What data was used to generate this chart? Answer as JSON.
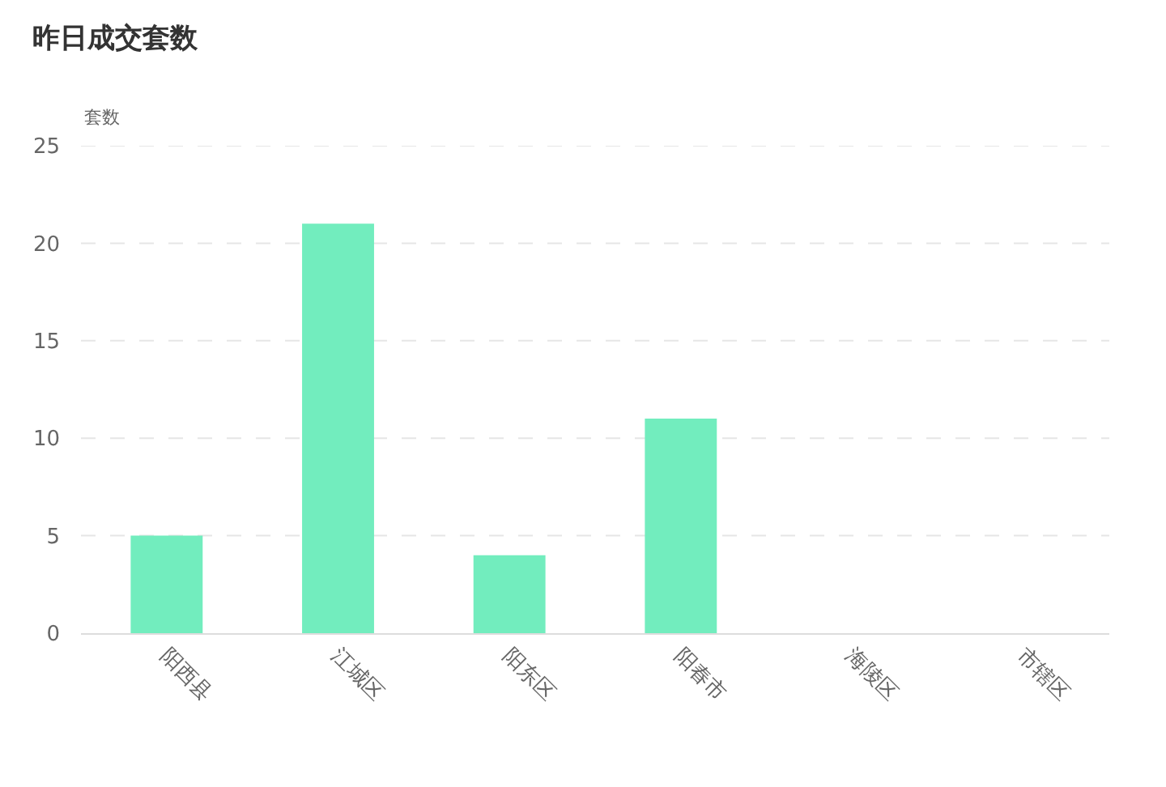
{
  "chart_data": {
    "type": "bar",
    "title": "昨日成交套数",
    "ylabel": "套数",
    "categories": [
      "阳西县",
      "江城区",
      "阳东区",
      "阳春市",
      "海陵区",
      "市辖区"
    ],
    "values": [
      5,
      21,
      4,
      11,
      0,
      0
    ],
    "color": "#72edbe",
    "ylim": [
      0,
      25
    ],
    "yticks": [
      0,
      5,
      10,
      15,
      20,
      25
    ],
    "grid": "y",
    "legend": false
  }
}
